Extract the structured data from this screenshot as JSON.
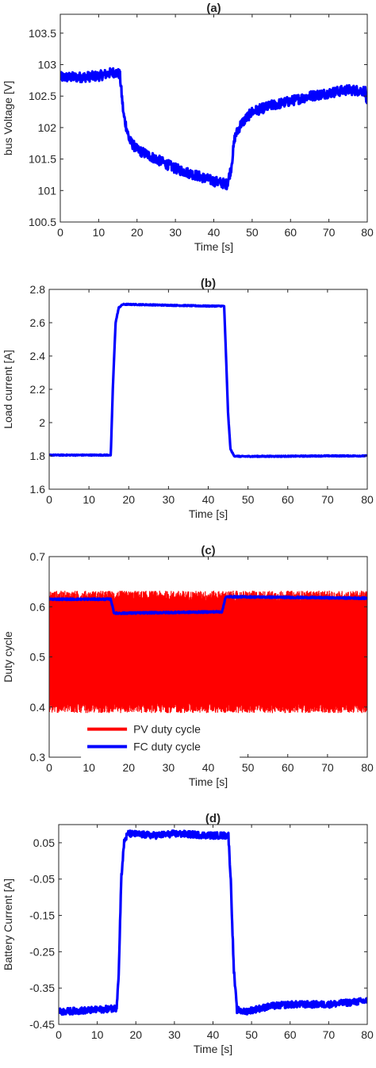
{
  "chart_data": [
    {
      "type": "line",
      "title": "(a)",
      "xlabel": "Time [s]",
      "ylabel": "bus Voltage [V]",
      "xlim": [
        0,
        80
      ],
      "ylim": [
        100.5,
        103.8
      ],
      "xticks": [
        0,
        10,
        20,
        30,
        40,
        50,
        60,
        70,
        80
      ],
      "yticks": [
        100.5,
        101,
        101.5,
        102,
        102.5,
        103,
        103.5
      ],
      "ytick_labels": [
        "100.5",
        "101",
        "101.5",
        "102",
        "102.5",
        "103",
        "103.5"
      ],
      "grid": false,
      "series": [
        {
          "color": "#0000ff",
          "noise": 0.08,
          "x": [
            0,
            5,
            10,
            14,
            15.5,
            16.5,
            18,
            20,
            25,
            30,
            35,
            40,
            43.5,
            44.5,
            45.5,
            47,
            50,
            55,
            60,
            65,
            70,
            75,
            79.5,
            80
          ],
          "y": [
            102.8,
            102.8,
            102.82,
            102.88,
            102.85,
            102.2,
            101.8,
            101.65,
            101.5,
            101.35,
            101.25,
            101.15,
            101.1,
            101.35,
            101.85,
            102.05,
            102.25,
            102.35,
            102.42,
            102.5,
            102.55,
            102.6,
            102.58,
            102.3
          ]
        }
      ]
    },
    {
      "type": "line",
      "title": "(b)",
      "xlabel": "Time [s]",
      "ylabel": "Load current [A]",
      "xlim": [
        0,
        80
      ],
      "ylim": [
        1.6,
        2.8
      ],
      "xticks": [
        0,
        10,
        20,
        30,
        40,
        50,
        60,
        70,
        80
      ],
      "yticks": [
        1.6,
        1.8,
        2,
        2.2,
        2.4,
        2.6,
        2.8
      ],
      "ytick_labels": [
        "1.6",
        "1.8",
        "2",
        "2.2",
        "2.4",
        "2.6",
        "2.8"
      ],
      "grid": false,
      "series": [
        {
          "color": "#0000ff",
          "noise": 0.003,
          "x": [
            0,
            15.5,
            16,
            16.7,
            17.5,
            18.5,
            20,
            30,
            40,
            44,
            44.4,
            45,
            45.6,
            46.5,
            48,
            60,
            70,
            80
          ],
          "y": [
            1.805,
            1.805,
            2.2,
            2.6,
            2.69,
            2.71,
            2.71,
            2.705,
            2.7,
            2.7,
            2.45,
            2.05,
            1.84,
            1.8,
            1.797,
            1.798,
            1.8,
            1.8
          ]
        }
      ]
    },
    {
      "type": "line",
      "title": "(c)",
      "xlabel": "Time [s]",
      "ylabel": "Duty cycle",
      "xlim": [
        0,
        80
      ],
      "ylim": [
        0.3,
        0.7
      ],
      "xticks": [
        0,
        10,
        20,
        30,
        40,
        50,
        60,
        70,
        80
      ],
      "yticks": [
        0.3,
        0.4,
        0.5,
        0.6,
        0.7
      ],
      "ytick_labels": [
        "0.3",
        "0.4",
        "0.5",
        "0.6",
        "0.7"
      ],
      "grid": false,
      "legend": "lower-left",
      "series": [
        {
          "name": "PV duty cycle",
          "color": "#ff0000",
          "band": true,
          "x": [
            0,
            80
          ],
          "upper": [
            0.62,
            0.62
          ],
          "lower": [
            0.4,
            0.4
          ],
          "jitter": 0.012
        },
        {
          "name": "FC duty cycle",
          "color": "#0000ff",
          "noise": 0.0015,
          "x": [
            0,
            15.5,
            16.3,
            17,
            43.5,
            44.3,
            45,
            80
          ],
          "y": [
            0.615,
            0.615,
            0.588,
            0.587,
            0.59,
            0.618,
            0.62,
            0.617
          ]
        }
      ]
    },
    {
      "type": "line",
      "title": "(d)",
      "xlabel": "Time [s]",
      "ylabel": "Battery Current [A]",
      "xlim": [
        0,
        80
      ],
      "ylim": [
        -0.45,
        0.1
      ],
      "xticks": [
        0,
        10,
        20,
        30,
        40,
        50,
        60,
        70,
        80
      ],
      "xtick_labels": [
        "0",
        "10",
        "20",
        "30",
        "40",
        "50",
        "60",
        "70",
        "80"
      ],
      "yticks": [
        -0.45,
        -0.35,
        -0.25,
        -0.15,
        -0.05,
        0.05
      ],
      "ytick_labels": [
        "-0.45",
        "-0.35",
        "-0.25",
        "-0.15",
        "-0.05",
        "0.05"
      ],
      "grid": false,
      "series": [
        {
          "color": "#0000ff",
          "noise": 0.009,
          "x": [
            0,
            10,
            15,
            15.6,
            16.2,
            17,
            18,
            25,
            30,
            40,
            44,
            44.6,
            45.4,
            46.2,
            48,
            55,
            60,
            70,
            80
          ],
          "y": [
            -0.415,
            -0.41,
            -0.405,
            -0.3,
            -0.05,
            0.055,
            0.075,
            0.07,
            0.075,
            0.07,
            0.07,
            -0.05,
            -0.3,
            -0.41,
            -0.415,
            -0.4,
            -0.395,
            -0.395,
            -0.385
          ]
        }
      ]
    }
  ]
}
